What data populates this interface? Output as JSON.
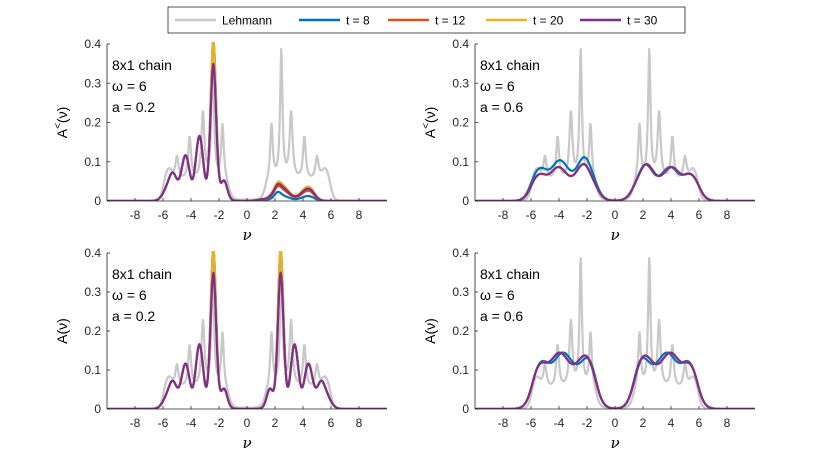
{
  "legend": [
    "Lehmann",
    "t = 8",
    "t = 12",
    "t = 20",
    "t = 30"
  ],
  "colors": {
    "Lehmann": "#c8c8c8",
    "t = 8": "#0072bd",
    "t = 12": "#d95319",
    "t = 20": "#edb120",
    "t = 30": "#7e2f8e"
  },
  "chart_data": [
    {
      "type": "line",
      "panel": "top-left",
      "ylabel_base": "A",
      "ylabel_sup": "<",
      "ylabel_arg": "(ν)",
      "xlabel": "ν",
      "xlim": [
        -10,
        10
      ],
      "ylim": [
        0,
        0.4
      ],
      "xticks": [
        -8,
        -6,
        -4,
        -2,
        0,
        2,
        4,
        6,
        8
      ],
      "yticks": [
        0,
        0.1,
        0.2,
        0.3,
        0.4
      ],
      "annotation": [
        "8x1 chain",
        "ω = 6",
        "a = 0.2"
      ],
      "params": {
        "a": 0.2,
        "kind": "lesser"
      }
    },
    {
      "type": "line",
      "panel": "top-right",
      "ylabel_base": "A",
      "ylabel_sup": "<",
      "ylabel_arg": "(ν)",
      "xlabel": "ν",
      "xlim": [
        -10,
        10
      ],
      "ylim": [
        0,
        0.4
      ],
      "xticks": [
        -8,
        -6,
        -4,
        -2,
        0,
        2,
        4,
        6,
        8
      ],
      "yticks": [
        0,
        0.1,
        0.2,
        0.3,
        0.4
      ],
      "annotation": [
        "8x1 chain",
        "ω = 6",
        "a = 0.6"
      ],
      "params": {
        "a": 0.6,
        "kind": "lesser"
      }
    },
    {
      "type": "line",
      "panel": "bottom-left",
      "ylabel_base": "A",
      "ylabel_sup": "",
      "ylabel_arg": "(ν)",
      "xlabel": "ν",
      "xlim": [
        -10,
        10
      ],
      "ylim": [
        0,
        0.4
      ],
      "xticks": [
        -8,
        -6,
        -4,
        -2,
        0,
        2,
        4,
        6,
        8
      ],
      "yticks": [
        0,
        0.1,
        0.2,
        0.3,
        0.4
      ],
      "annotation": [
        "8x1 chain",
        "ω = 6",
        "a = 0.2"
      ],
      "params": {
        "a": 0.2,
        "kind": "full"
      }
    },
    {
      "type": "line",
      "panel": "bottom-right",
      "ylabel_base": "A",
      "ylabel_sup": "",
      "ylabel_arg": "(ν)",
      "xlabel": "ν",
      "xlim": [
        -10,
        10
      ],
      "ylim": [
        0,
        0.4
      ],
      "xticks": [
        -8,
        -6,
        -4,
        -2,
        0,
        2,
        4,
        6,
        8
      ],
      "yticks": [
        0,
        0.1,
        0.2,
        0.3,
        0.4
      ],
      "annotation": [
        "8x1 chain",
        "ω = 6",
        "a = 0.6"
      ],
      "params": {
        "a": 0.6,
        "kind": "full"
      }
    }
  ]
}
